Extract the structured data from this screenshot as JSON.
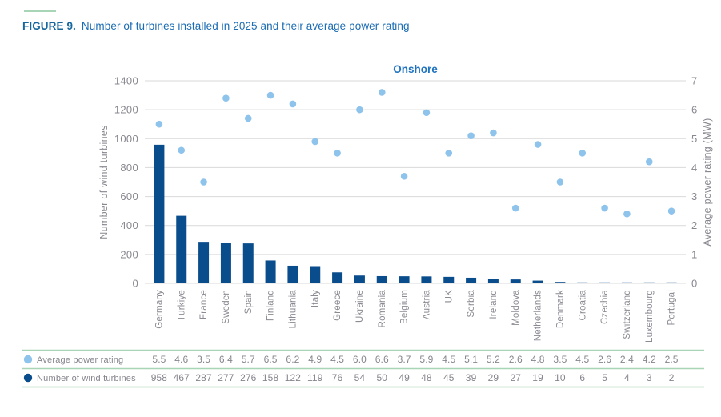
{
  "figure": {
    "label": "FIGURE 9.",
    "title": "Number of turbines installed in 2025 and their average power rating"
  },
  "chart_data": {
    "type": "combo",
    "title": "Onshore",
    "categories": [
      "Germany",
      "Türkiye",
      "France",
      "Sweden",
      "Spain",
      "Finland",
      "Lithuania",
      "Italy",
      "Greece",
      "Ukraine",
      "Romania",
      "Belgium",
      "Austria",
      "UK",
      "Serbia",
      "Ireland",
      "Moldova",
      "Netherlands",
      "Denmark",
      "Croatia",
      "Czechia",
      "Switzerland",
      "Luxembourg",
      "Portugal"
    ],
    "series": [
      {
        "name": "Number of wind turbines",
        "type": "bar",
        "axis": "left",
        "color": "#0a4d8c",
        "values": [
          958,
          467,
          287,
          277,
          276,
          158,
          122,
          119,
          76,
          54,
          50,
          49,
          48,
          45,
          39,
          29,
          27,
          19,
          10,
          6,
          5,
          4,
          3,
          2
        ]
      },
      {
        "name": "Average power rating",
        "type": "scatter",
        "axis": "right",
        "color": "#8ec3ec",
        "values": [
          5.5,
          4.6,
          3.5,
          6.4,
          5.7,
          6.5,
          6.2,
          4.9,
          4.5,
          6.0,
          6.6,
          3.7,
          5.9,
          4.5,
          5.1,
          5.2,
          2.6,
          4.8,
          3.5,
          4.5,
          2.6,
          2.4,
          4.2,
          2.5
        ]
      }
    ],
    "left_axis": {
      "label": "Number of wind turbines",
      "min": 0,
      "max": 1400,
      "tick_step": 200
    },
    "right_axis": {
      "label": "Average power rating (MW)",
      "min": 0,
      "max": 7,
      "tick_step": 1
    },
    "grid": true,
    "legend_position": "bottom-table"
  },
  "legend_table": {
    "rows": [
      {
        "label": "Average power rating",
        "marker": "circle",
        "marker_color": "#8ec3ec",
        "value_format": "1dp"
      },
      {
        "label": "Number of wind turbines",
        "marker": "circle",
        "marker_color": "#0a4d8c",
        "value_format": "int"
      }
    ]
  },
  "colors": {
    "accent_green": "#a7d5b6",
    "figure_title_blue": "#1b6cb3",
    "chart_title_blue": "#1e72c0",
    "bar_navy": "#0a4d8c",
    "dot_light_blue": "#8ec3ec",
    "gridline_gray": "#d9d9da",
    "text_gray": "#87878f"
  }
}
